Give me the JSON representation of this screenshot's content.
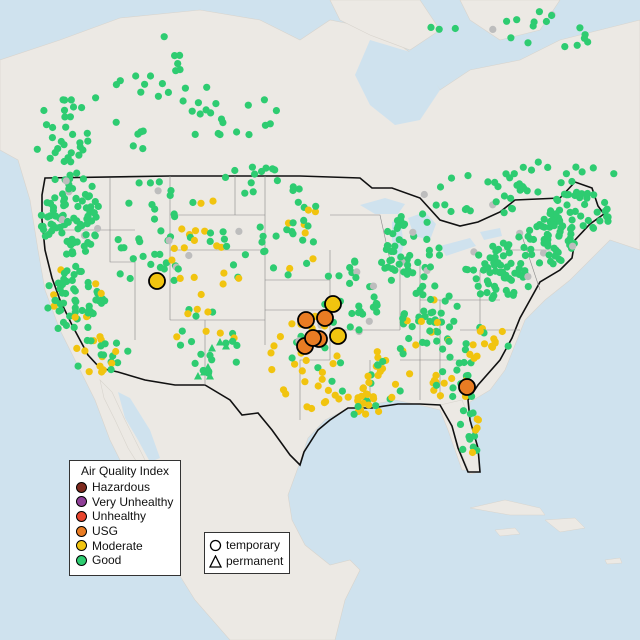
{
  "legend": {
    "title": "Air Quality Index",
    "categories": [
      {
        "label": "Hazardous",
        "color": "#7e2a1e"
      },
      {
        "label": "Very Unhealthy",
        "color": "#8f3f97"
      },
      {
        "label": "Unhealthy",
        "color": "#e8452e"
      },
      {
        "label": "USG",
        "color": "#e97c23"
      },
      {
        "label": "Moderate",
        "color": "#f1c40f"
      },
      {
        "label": "Good",
        "color": "#2ecc71"
      }
    ]
  },
  "shape_legend": {
    "items": [
      {
        "label": "temporary",
        "icon": "circle-icon"
      },
      {
        "label": "permanent",
        "icon": "triangle-icon"
      }
    ]
  },
  "colors": {
    "water": "#cfe2ee",
    "land": "#ece9e4",
    "no_data": "#bdbdbd"
  },
  "large_markers": [
    {
      "category": "Moderate"
    },
    {
      "category": "USG"
    },
    {
      "category": "Moderate"
    },
    {
      "category": "USG"
    },
    {
      "category": "USG"
    },
    {
      "category": "USG"
    },
    {
      "category": "Moderate"
    },
    {
      "category": "USG"
    },
    {
      "category": "USG"
    }
  ]
}
